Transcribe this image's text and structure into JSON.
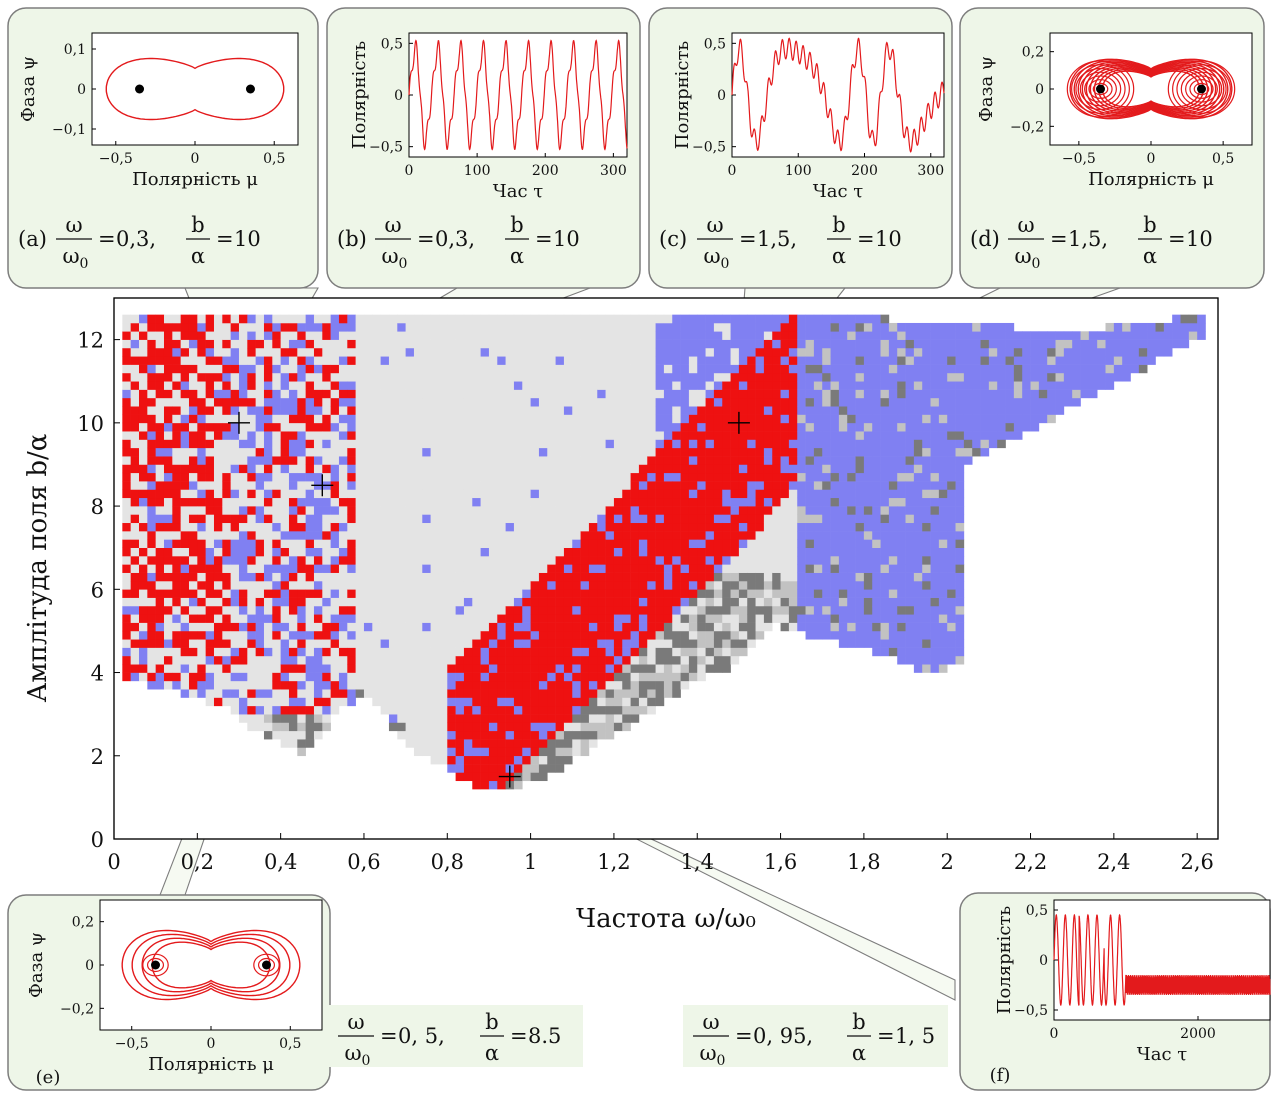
{
  "chart_data": {
    "type": "heatmap",
    "title": "",
    "xlabel": "Частота ω/ω₀",
    "ylabel": "Амплітуда поля b/α",
    "xlim": [
      0,
      2.65
    ],
    "ylim": [
      0,
      13
    ],
    "xticks": [
      "0",
      "0,2",
      "0,4",
      "0,6",
      "0,8",
      "1",
      "1,2",
      "1,4",
      "1,6",
      "1,8",
      "2",
      "2,2",
      "2,4",
      "2,6"
    ],
    "yticks": [
      "0",
      "2",
      "4",
      "6",
      "8",
      "10",
      "12"
    ],
    "grid_step": {
      "x": 0.02,
      "y": 0.2
    },
    "categories": {
      "red": "#ee1111",
      "blue": "#8080f2",
      "light_gray": "#e4e4e4",
      "mid_gray": "#c2c2c2",
      "dark_gray": "#7a7a7a"
    },
    "markers": [
      {
        "id": "a",
        "x": 0.3,
        "y": 10
      },
      {
        "id": "c",
        "x": 1.5,
        "y": 10
      },
      {
        "id": "e",
        "x": 0.5,
        "y": 8.5
      },
      {
        "id": "f",
        "x": 0.95,
        "y": 1.5
      }
    ],
    "insets": [
      {
        "id": "a",
        "kind": "phase",
        "letter": "(a)",
        "freq": "0,3,",
        "amp": "10",
        "xlabel": "Полярність μ",
        "ylabel": "Фаза ψ",
        "xticks": [
          "−0,5",
          "0",
          "0,5"
        ],
        "yticks": [
          "0,1",
          "0",
          "−0,1"
        ],
        "xlim": [
          -0.65,
          0.65
        ],
        "ylim": [
          -0.14,
          0.14
        ],
        "fixed_points": [
          -0.35,
          0.35
        ]
      },
      {
        "id": "b",
        "kind": "time",
        "letter": "(b)",
        "freq": "0,3,",
        "amp": "10",
        "xlabel": "Час τ",
        "ylabel": "Полярність",
        "xticks": [
          "0",
          "100",
          "200",
          "300"
        ],
        "yticks": [
          "0,5",
          "0",
          "−0,5"
        ],
        "xlim": [
          0,
          320
        ],
        "ylim": [
          -0.6,
          0.6
        ]
      },
      {
        "id": "c",
        "kind": "time",
        "letter": "(c)",
        "freq": "1,5,",
        "amp": "10",
        "xlabel": "Час τ",
        "ylabel": "Полярність",
        "xticks": [
          "0",
          "100",
          "200",
          "300"
        ],
        "yticks": [
          "0,5",
          "0",
          "−0,5"
        ],
        "xlim": [
          0,
          320
        ],
        "ylim": [
          -0.6,
          0.6
        ]
      },
      {
        "id": "d",
        "kind": "phase",
        "letter": "(d)",
        "freq": "1,5,",
        "amp": "10",
        "xlabel": "Полярність μ",
        "ylabel": "Фаза ψ",
        "xticks": [
          "−0,5",
          "0",
          "0,5"
        ],
        "yticks": [
          "0,2",
          "0",
          "−0,2"
        ],
        "xlim": [
          -0.7,
          0.7
        ],
        "ylim": [
          -0.3,
          0.3
        ],
        "fixed_points": [
          -0.35,
          0.35
        ]
      },
      {
        "id": "e",
        "kind": "phase",
        "letter": "(e)",
        "freq": "0, 5,",
        "amp": "8.5",
        "xlabel": "Полярність μ",
        "ylabel": "Фаза ψ",
        "xticks": [
          "−0,5",
          "0",
          "0,5"
        ],
        "yticks": [
          "0,2",
          "0",
          "−0,2"
        ],
        "xlim": [
          -0.7,
          0.7
        ],
        "ylim": [
          -0.3,
          0.3
        ],
        "fixed_points": [
          -0.35,
          0.35
        ]
      },
      {
        "id": "f",
        "kind": "time",
        "letter": "(f)",
        "freq": "0, 95,",
        "amp": "1, 5",
        "xlabel": "Час τ",
        "ylabel": "Полярність",
        "xticks": [
          "0",
          "2000"
        ],
        "yticks": [
          "0,5",
          "0",
          "−0,5"
        ],
        "xlim": [
          0,
          3000
        ],
        "ylim": [
          -0.6,
          0.6
        ]
      }
    ],
    "caption_symbols": {
      "omega": "ω",
      "omega0": "ω",
      "sub0": "0",
      "b": "b",
      "alpha": "α",
      "eq": "="
    }
  }
}
